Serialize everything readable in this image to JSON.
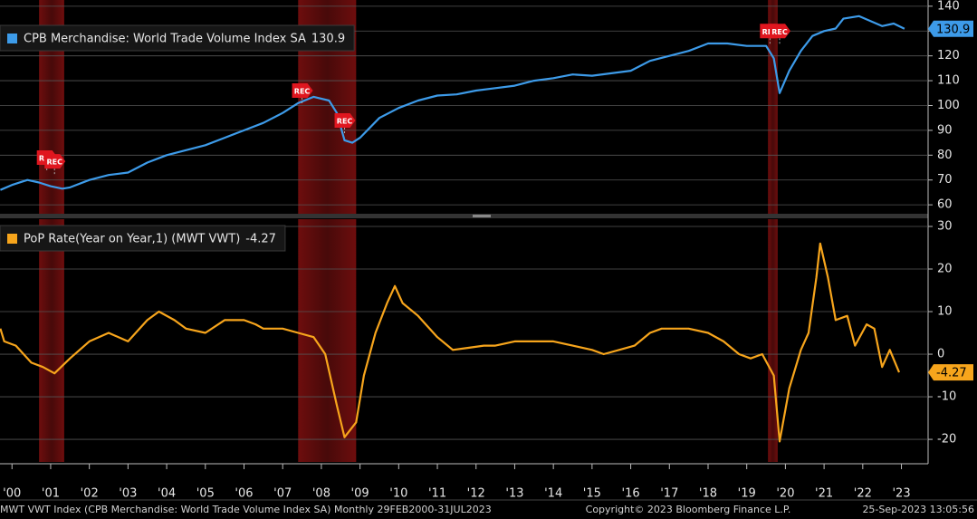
{
  "chart_data": [
    {
      "type": "line",
      "xlim": [
        2000.19,
        2024.19
      ],
      "ylim": [
        56.4,
        142.5
      ],
      "yticks": [
        60,
        70,
        80,
        90,
        100,
        110,
        120,
        130,
        140
      ],
      "grid": true,
      "recessions": [
        [
          2001.2,
          2001.85
        ],
        [
          2007.9,
          2009.4
        ],
        [
          2020.05,
          2020.3
        ]
      ],
      "annotations": [
        {
          "x": 2001.4,
          "y": 79,
          "text": "REC"
        },
        {
          "x": 2001.6,
          "y": 77.5,
          "text": "REC"
        },
        {
          "x": 2008.0,
          "y": 106,
          "text": "REC"
        },
        {
          "x": 2009.1,
          "y": 94,
          "text": "REC"
        },
        {
          "x": 2020.1,
          "y": 130,
          "text": "REC"
        },
        {
          "x": 2020.35,
          "y": 130,
          "text": "REC"
        }
      ],
      "x": [
        2000.2,
        2000.5,
        2000.9,
        2001.2,
        2001.5,
        2001.8,
        2002.0,
        2002.5,
        2003.0,
        2003.5,
        2004.0,
        2004.5,
        2005.0,
        2005.5,
        2006.0,
        2006.5,
        2007.0,
        2007.5,
        2007.9,
        2008.3,
        2008.7,
        2008.9,
        2009.1,
        2009.3,
        2009.5,
        2010.0,
        2010.5,
        2011.0,
        2011.5,
        2012.0,
        2012.5,
        2013.0,
        2013.5,
        2014.0,
        2014.5,
        2015.0,
        2015.5,
        2016.0,
        2016.5,
        2017.0,
        2017.5,
        2018.0,
        2018.5,
        2019.0,
        2019.5,
        2020.0,
        2020.2,
        2020.35,
        2020.6,
        2020.9,
        2021.2,
        2021.5,
        2021.8,
        2022.0,
        2022.4,
        2022.7,
        2023.0,
        2023.3,
        2023.58
      ],
      "series": [
        {
          "name": "CPB Merchandise: World Trade Volume Index SA",
          "color": "#3d9be9",
          "values": [
            66,
            68,
            70,
            69,
            67.5,
            66.5,
            67,
            70,
            72,
            73,
            77,
            80,
            82,
            84,
            87,
            90,
            93,
            97,
            101,
            103.5,
            102,
            97,
            86,
            85,
            87,
            95,
            99,
            102,
            104,
            104.5,
            106,
            107,
            108,
            110,
            111,
            112.5,
            112,
            113,
            114,
            118,
            120,
            122,
            125,
            125,
            124,
            124,
            119,
            105,
            114,
            122,
            128,
            130,
            131,
            135,
            136,
            134,
            132,
            133,
            130.9
          ]
        }
      ]
    },
    {
      "type": "line",
      "xlim": [
        2000.19,
        2024.19
      ],
      "ylim": [
        -25.3,
        31.7
      ],
      "yticks": [
        -20,
        -10,
        0,
        10,
        20,
        30
      ],
      "grid": true,
      "recessions": [
        [
          2001.2,
          2001.85
        ],
        [
          2007.9,
          2009.4
        ],
        [
          2020.05,
          2020.3
        ]
      ],
      "xticks": [
        {
          "value": 2000.5,
          "label": "'00"
        },
        {
          "value": 2001.5,
          "label": "'01"
        },
        {
          "value": 2002.5,
          "label": "'02"
        },
        {
          "value": 2003.5,
          "label": "'03"
        },
        {
          "value": 2004.5,
          "label": "'04"
        },
        {
          "value": 2005.5,
          "label": "'05"
        },
        {
          "value": 2006.5,
          "label": "'06"
        },
        {
          "value": 2007.5,
          "label": "'07"
        },
        {
          "value": 2008.5,
          "label": "'08"
        },
        {
          "value": 2009.5,
          "label": "'09"
        },
        {
          "value": 2010.5,
          "label": "'10"
        },
        {
          "value": 2011.5,
          "label": "'11"
        },
        {
          "value": 2012.5,
          "label": "'12"
        },
        {
          "value": 2013.5,
          "label": "'13"
        },
        {
          "value": 2014.5,
          "label": "'14"
        },
        {
          "value": 2015.5,
          "label": "'15"
        },
        {
          "value": 2016.5,
          "label": "'16"
        },
        {
          "value": 2017.5,
          "label": "'17"
        },
        {
          "value": 2018.5,
          "label": "'18"
        },
        {
          "value": 2019.5,
          "label": "'19"
        },
        {
          "value": 2020.5,
          "label": "'20"
        },
        {
          "value": 2021.5,
          "label": "'21"
        },
        {
          "value": 2022.5,
          "label": "'22"
        },
        {
          "value": 2023.5,
          "label": "'23"
        }
      ],
      "x": [
        2000.2,
        2000.3,
        2000.6,
        2001.0,
        2001.3,
        2001.6,
        2002.0,
        2002.5,
        2003.0,
        2003.5,
        2004.0,
        2004.3,
        2004.7,
        2005.0,
        2005.5,
        2006.0,
        2006.5,
        2006.8,
        2007.0,
        2007.5,
        2007.9,
        2008.3,
        2008.6,
        2008.9,
        2009.1,
        2009.4,
        2009.6,
        2009.9,
        2010.2,
        2010.4,
        2010.6,
        2011.0,
        2011.5,
        2011.9,
        2012.3,
        2012.7,
        2013.0,
        2013.5,
        2014.0,
        2014.5,
        2015.0,
        2015.5,
        2015.8,
        2016.2,
        2016.6,
        2017.0,
        2017.3,
        2017.7,
        2018.0,
        2018.5,
        2018.9,
        2019.3,
        2019.6,
        2019.9,
        2020.2,
        2020.35,
        2020.6,
        2020.9,
        2021.1,
        2021.3,
        2021.4,
        2021.6,
        2021.8,
        2022.1,
        2022.3,
        2022.6,
        2022.8,
        2023.0,
        2023.2,
        2023.44
      ],
      "series": [
        {
          "name": "PoP Rate(Year on Year,1) (MWT VWT)",
          "color": "#f7a51c",
          "values": [
            6,
            3,
            2,
            -2,
            -3,
            -4.5,
            -1,
            3,
            5,
            3,
            8,
            10,
            8,
            6,
            5,
            8,
            8,
            7,
            6,
            6,
            5,
            4,
            0,
            -12,
            -19.5,
            -16,
            -5,
            5,
            12,
            16,
            12,
            9,
            4,
            1,
            1.5,
            2,
            2,
            3,
            3,
            3,
            2,
            1,
            0,
            1,
            2,
            5,
            6,
            6,
            6,
            5,
            3,
            0,
            -1,
            0,
            -5,
            -20.5,
            -8,
            1,
            5,
            18,
            26,
            18,
            8,
            9,
            2,
            7,
            6,
            -3,
            1,
            -4.27
          ]
        }
      ]
    }
  ],
  "footer": {
    "left": "MWT VWT Index (CPB Merchandise: World Trade Volume Index  SA)  Monthly 29FEB2000-31JUL2023",
    "center": "Copyright© 2023 Bloomberg Finance L.P.",
    "right": "25-Sep-2023 13:05:56"
  }
}
